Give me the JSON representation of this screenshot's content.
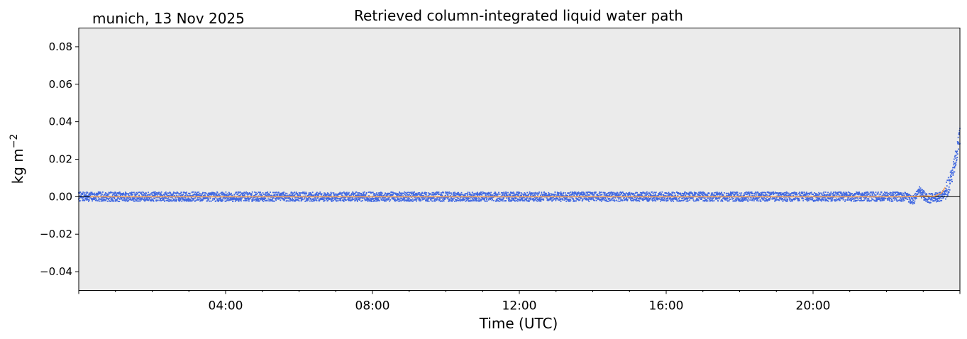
{
  "chart_data": {
    "type": "scatter",
    "title": "Retrieved column-integrated liquid water path",
    "subtitle": "munich, 13 Nov 2025",
    "xlabel": "Time (UTC)",
    "ylabel": "kg m−2",
    "ylabel_text": "kg m",
    "ylabel_exp": "−2",
    "xlim_hours": [
      0,
      24
    ],
    "ylim": [
      -0.05,
      0.09
    ],
    "xticks": [
      {
        "hour": 4,
        "label": "04:00"
      },
      {
        "hour": 8,
        "label": "08:00"
      },
      {
        "hour": 12,
        "label": "12:00"
      },
      {
        "hour": 16,
        "label": "16:00"
      },
      {
        "hour": 20,
        "label": "20:00"
      }
    ],
    "yticks": [
      {
        "value": -0.04,
        "label": "−0.04"
      },
      {
        "value": -0.02,
        "label": "−0.02"
      },
      {
        "value": 0.0,
        "label": "0.00"
      },
      {
        "value": 0.02,
        "label": "0.02"
      },
      {
        "value": 0.04,
        "label": "0.04"
      },
      {
        "value": 0.06,
        "label": "0.06"
      },
      {
        "value": 0.08,
        "label": "0.08"
      }
    ],
    "background": "#ebebeb",
    "grid": false,
    "zero_line": true,
    "series": [
      {
        "kind": "scatter",
        "color": "#4169e1",
        "noise_amplitude": 0.0025,
        "points": [
          {
            "hour": 0.0,
            "value": 0.0
          },
          {
            "hour": 6.0,
            "value": 0.0
          },
          {
            "hour": 12.0,
            "value": 0.0
          },
          {
            "hour": 18.0,
            "value": 0.0
          },
          {
            "hour": 22.5,
            "value": 0.0
          },
          {
            "hour": 22.75,
            "value": -0.002
          },
          {
            "hour": 22.9,
            "value": 0.003
          },
          {
            "hour": 23.1,
            "value": -0.001
          },
          {
            "hour": 23.5,
            "value": 0.0
          },
          {
            "hour": 23.65,
            "value": 0.004
          },
          {
            "hour": 23.8,
            "value": 0.012
          },
          {
            "hour": 23.9,
            "value": 0.022
          },
          {
            "hour": 24.0,
            "value": 0.032
          }
        ]
      },
      {
        "kind": "line",
        "color": "#f4a460",
        "points": [
          {
            "hour": 0.3,
            "value": 0.0
          },
          {
            "hour": 12.0,
            "value": 0.0
          },
          {
            "hour": 22.5,
            "value": 0.0
          },
          {
            "hour": 23.1,
            "value": 0.0004
          },
          {
            "hour": 23.3,
            "value": 0.0002
          },
          {
            "hour": 23.5,
            "value": 0.002
          },
          {
            "hour": 23.6,
            "value": 0.005
          }
        ]
      }
    ]
  }
}
